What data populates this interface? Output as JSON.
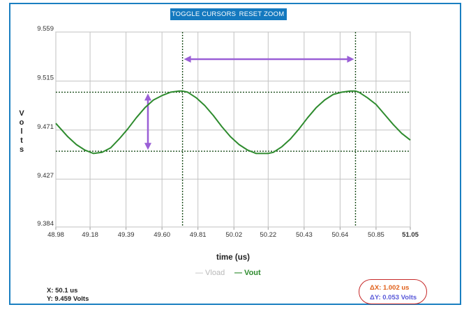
{
  "toolbar": {
    "toggle_cursors_label": "TOGGLE CURSORS",
    "reset_zoom_label": "RESET ZOOM"
  },
  "legend": {
    "vload": "— Vload",
    "vout": "— Vout"
  },
  "readout": {
    "x": "X: 50.1 us",
    "y": "Y: 9.459 Volts"
  },
  "deltas": {
    "dx": "ΔX: 1.002 us",
    "dy": "ΔY: 0.053 Volts"
  },
  "colors": {
    "frame": "#1a7fc1",
    "button": "#1479bf",
    "vout": "#2e8b2e",
    "vload": "#b8b8b8",
    "cursor_arrow": "#9a5fd6",
    "delta_box": "#c62828"
  },
  "chart_data": {
    "type": "line",
    "xlabel": "time (us)",
    "ylabel": "Volts",
    "xlim": [
      48.98,
      51.05
    ],
    "ylim": [
      9.384,
      9.559
    ],
    "x_ticks": [
      "48.98",
      "49.18",
      "49.39",
      "49.60",
      "49.81",
      "50.02",
      "50.22",
      "50.43",
      "50.64",
      "50.85",
      "51.05"
    ],
    "y_ticks": [
      "9.384",
      "9.427",
      "9.471",
      "9.515",
      "9.559"
    ],
    "grid": true,
    "legend_position": "bottom-center",
    "series": [
      {
        "name": "Vload",
        "visible": false,
        "values": []
      },
      {
        "name": "Vout",
        "visible": true,
        "color": "#2e8b2e",
        "x": [
          48.98,
          49.05,
          49.1,
          49.15,
          49.2,
          49.25,
          49.3,
          49.35,
          49.4,
          49.45,
          49.5,
          49.55,
          49.6,
          49.65,
          49.7,
          49.72,
          49.75,
          49.8,
          49.85,
          49.9,
          49.95,
          50.0,
          50.05,
          50.1,
          50.15,
          50.2,
          50.22,
          50.25,
          50.3,
          50.35,
          50.4,
          50.45,
          50.5,
          50.55,
          50.6,
          50.65,
          50.7,
          50.73,
          50.75,
          50.8,
          50.85,
          50.9,
          50.95,
          51.0,
          51.05
        ],
        "values": [
          9.477,
          9.465,
          9.458,
          9.453,
          9.45,
          9.451,
          9.455,
          9.463,
          9.472,
          9.482,
          9.491,
          9.498,
          9.502,
          9.505,
          9.506,
          9.506,
          9.505,
          9.5,
          9.493,
          9.484,
          9.474,
          9.465,
          9.458,
          9.453,
          9.45,
          9.45,
          9.45,
          9.451,
          9.456,
          9.463,
          9.472,
          9.482,
          9.491,
          9.498,
          9.503,
          9.505,
          9.506,
          9.506,
          9.505,
          9.5,
          9.494,
          9.485,
          9.476,
          9.468,
          9.462
        ]
      }
    ],
    "cursors": {
      "x1": 49.72,
      "x2": 50.73,
      "y_high": 9.505,
      "y_low": 9.452
    }
  }
}
